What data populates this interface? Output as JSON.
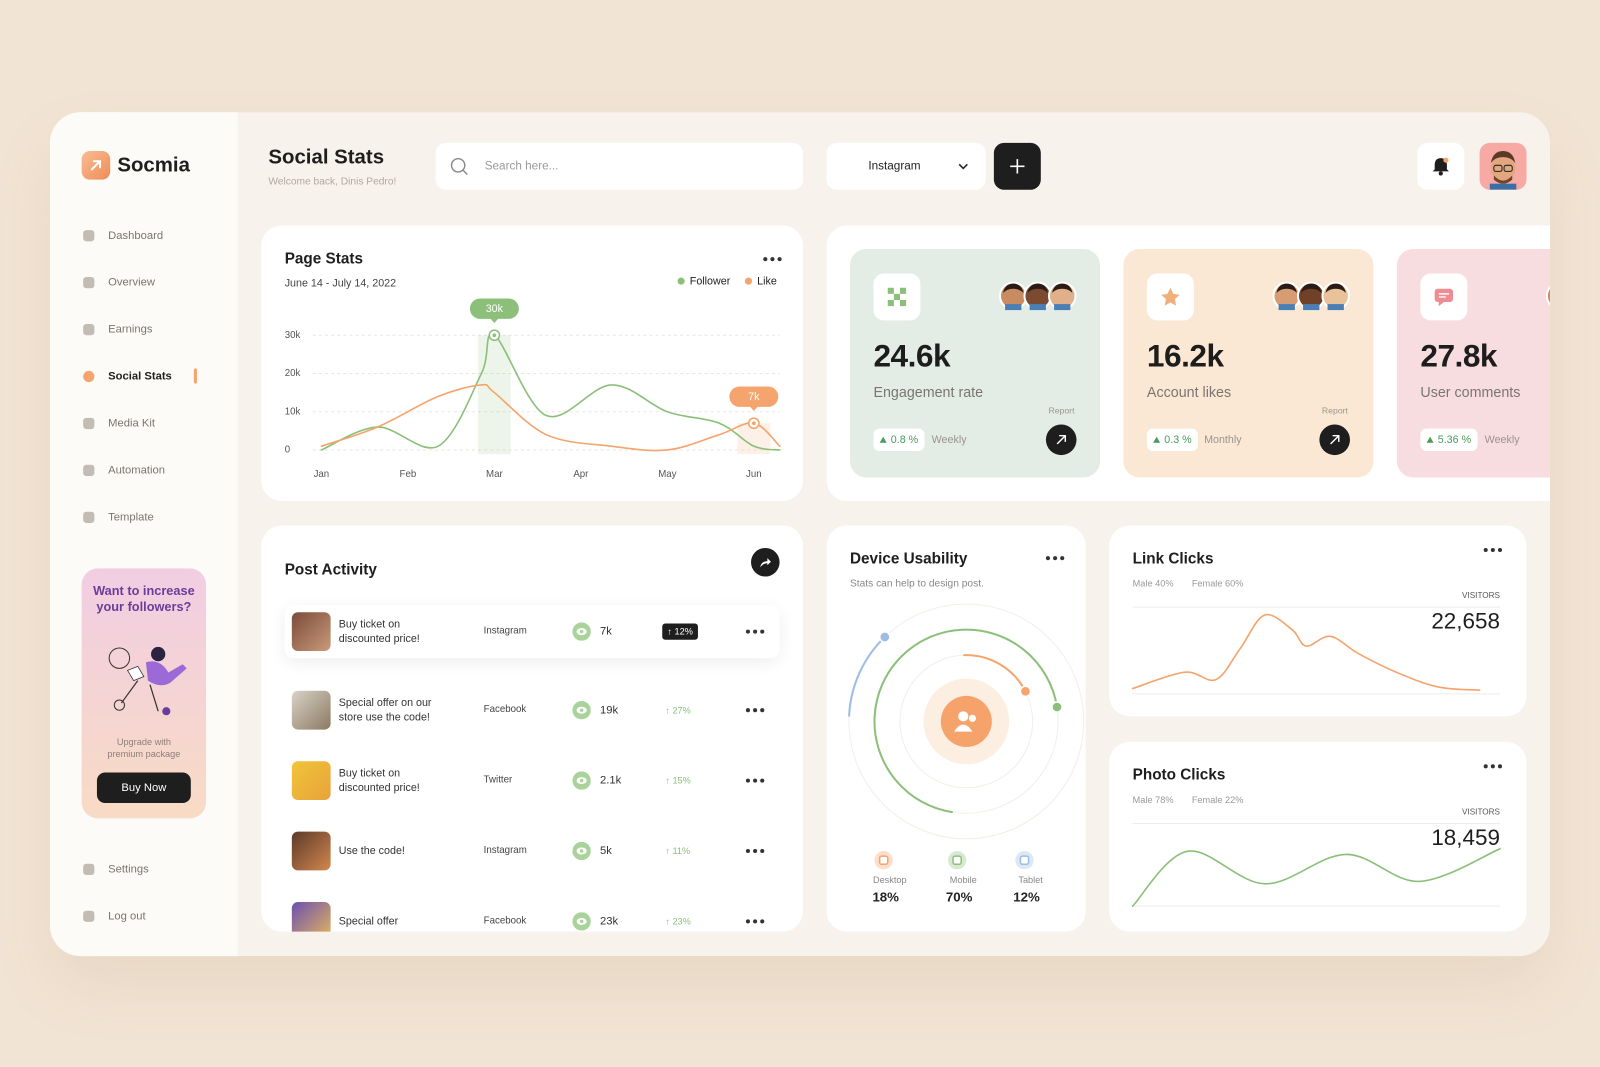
{
  "sidebar": {
    "brand": "Socmia",
    "nav": [
      "Dashboard",
      "Overview",
      "Earnings",
      "Social Stats",
      "Media Kit",
      "Automation",
      "Template"
    ],
    "active": 3,
    "promo": {
      "title": "Want to increase your followers?",
      "text": "Upgrade with premium package",
      "button": "Buy Now"
    },
    "footer_nav": [
      "Settings",
      "Log out"
    ]
  },
  "header": {
    "title": "Social Stats",
    "subtitle": "Welcome back, Dinis Pedro!",
    "search_placeholder": "Search here...",
    "platform": "Instagram"
  },
  "page_stats": {
    "chart_data": {
      "type": "line",
      "title": "Page Stats",
      "subtitle": "June 14 - July 14, 2022",
      "x": [
        0,
        0.65,
        1.35,
        1.85,
        2,
        2.6,
        3.35,
        4,
        4.6,
        5,
        5.3
      ],
      "series": [
        {
          "name": "Follower",
          "color": "#8cc07a",
          "values": [
            0,
            6000,
            1000,
            20000,
            30000,
            9000,
            17000,
            10000,
            7000,
            1000,
            0
          ]
        },
        {
          "name": "Like",
          "color": "#f4a46c",
          "values": [
            1000,
            6000,
            14000,
            17000,
            15000,
            4000,
            1000,
            0,
            4000,
            7000,
            1000
          ]
        }
      ],
      "annotations": [
        {
          "series": 0,
          "x": 2,
          "value": 30000,
          "label": "30k"
        },
        {
          "series": 1,
          "x": 5,
          "value": 7000,
          "label": "7k"
        }
      ],
      "xlim": [
        -0.1,
        5.3
      ],
      "xticks": [
        {
          "value": 0,
          "label": "Jan"
        },
        {
          "value": 1,
          "label": "Feb"
        },
        {
          "value": 2,
          "label": "Mar"
        },
        {
          "value": 3,
          "label": "Apr"
        },
        {
          "value": 4,
          "label": "May"
        },
        {
          "value": 5,
          "label": "Jun"
        }
      ],
      "ylim": [
        0,
        32000
      ],
      "yticks": [
        0,
        {
          "value": 10000,
          "label": "10k"
        },
        {
          "value": 20000,
          "label": "20k"
        },
        {
          "value": 30000,
          "label": "30k"
        }
      ],
      "grid": true,
      "legend": "top-right"
    }
  },
  "stat_cards": [
    {
      "value": "24.6k",
      "label": "Engagement rate",
      "change": "0.8 %",
      "period": "Weekly",
      "action": "Report"
    },
    {
      "value": "16.2k",
      "label": "Account likes",
      "change": "0.3 %",
      "period": "Monthly",
      "action": "Report"
    },
    {
      "value": "27.8k",
      "label": "User comments",
      "change": "5.36 %",
      "period": "Weekly"
    }
  ],
  "post_activity": {
    "title": "Post Activity",
    "rows": [
      {
        "title": "Buy ticket on discounted price!",
        "platform": "Instagram",
        "views": "7k",
        "change": "↑ 12%"
      },
      {
        "title": "Special offer on our store use the code!",
        "platform": "Facebook",
        "views": "19k",
        "change": "↑ 27%"
      },
      {
        "title": "Buy ticket on discounted price!",
        "platform": "Twitter",
        "views": "2.1k",
        "change": "↑ 15%"
      },
      {
        "title": "Use the code!",
        "platform": "Instagram",
        "views": "5k",
        "change": "↑ 11%"
      },
      {
        "title": "Special offer",
        "platform": "Facebook",
        "views": "23k",
        "change": "↑ 23%"
      }
    ]
  },
  "device_usability": {
    "chart_data": {
      "type": "radial",
      "title": "Device Usability",
      "subtitle": "Stats can help to design post.",
      "categories": [
        "Desktop",
        "Mobile",
        "Tablet"
      ],
      "values": [
        18,
        70,
        12
      ],
      "value_labels": [
        "18%",
        "70%",
        "12%"
      ],
      "colors": [
        "#f4a46c",
        "#8cc07a",
        "#9dbde3"
      ]
    }
  },
  "link_clicks": {
    "chart_data": {
      "type": "line",
      "title": "Link Clicks",
      "breakdown": [
        "Male 40%",
        "Female 60%"
      ],
      "metric_label": "VISITORS",
      "metric": "22,658",
      "x": [
        0,
        15,
        24,
        31,
        38,
        46,
        50,
        57,
        65,
        76,
        88,
        100
      ],
      "values": [
        4,
        24,
        15,
        53,
        94,
        76,
        56,
        68,
        47,
        24,
        6,
        2
      ],
      "color": "#f4a46c",
      "xlim": [
        0,
        100
      ],
      "ylim": [
        0,
        100
      ]
    }
  },
  "photo_clicks": {
    "chart_data": {
      "type": "line",
      "title": "Photo Clicks",
      "breakdown": [
        "Male 78%",
        "Female 22%"
      ],
      "metric_label": "VISITORS",
      "metric": "18,459",
      "x": [
        0,
        15,
        36,
        58,
        78,
        100
      ],
      "values": [
        0,
        69,
        28,
        65,
        31,
        72
      ],
      "color": "#8cc07a",
      "xlim": [
        0,
        100
      ],
      "ylim": [
        0,
        100
      ]
    }
  }
}
